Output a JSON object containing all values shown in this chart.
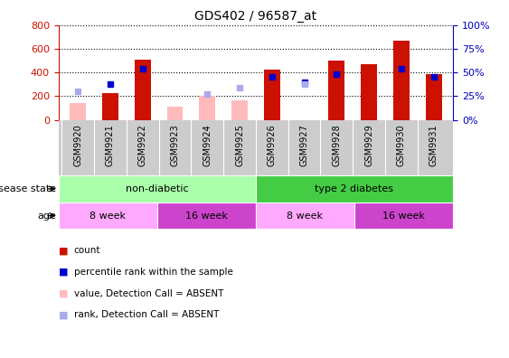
{
  "title": "GDS402 / 96587_at",
  "samples": [
    "GSM9920",
    "GSM9921",
    "GSM9922",
    "GSM9923",
    "GSM9924",
    "GSM9925",
    "GSM9926",
    "GSM9927",
    "GSM9928",
    "GSM9929",
    "GSM9930",
    "GSM9931"
  ],
  "count_values": [
    null,
    225,
    510,
    null,
    null,
    null,
    425,
    null,
    498,
    470,
    665,
    385
  ],
  "count_absent": [
    145,
    null,
    null,
    110,
    200,
    165,
    null,
    null,
    null,
    null,
    null,
    null
  ],
  "percentile_rank": [
    null,
    305,
    435,
    null,
    null,
    null,
    360,
    320,
    385,
    null,
    435,
    360
  ],
  "percentile_absent": [
    245,
    null,
    null,
    null,
    215,
    270,
    null,
    305,
    null,
    null,
    null,
    null
  ],
  "ylim_left": [
    0,
    800
  ],
  "ylim_right": [
    0,
    100
  ],
  "yticks_left": [
    0,
    200,
    400,
    600,
    800
  ],
  "yticks_right": [
    0,
    25,
    50,
    75,
    100
  ],
  "bar_color_count": "#cc1100",
  "bar_color_absent": "#ffbbbb",
  "dot_color_rank": "#0000cc",
  "dot_color_rank_absent": "#aaaaee",
  "disease_state_groups": [
    {
      "label": "non-diabetic",
      "start": 0,
      "end": 6,
      "color": "#aaffaa"
    },
    {
      "label": "type 2 diabetes",
      "start": 6,
      "end": 12,
      "color": "#44cc44"
    }
  ],
  "age_groups": [
    {
      "label": "8 week",
      "start": 0,
      "end": 3,
      "color": "#ffaaff"
    },
    {
      "label": "16 week",
      "start": 3,
      "end": 6,
      "color": "#cc44cc"
    },
    {
      "label": "8 week",
      "start": 6,
      "end": 9,
      "color": "#ffaaff"
    },
    {
      "label": "16 week",
      "start": 9,
      "end": 12,
      "color": "#cc44cc"
    }
  ],
  "legend_items": [
    {
      "label": "count",
      "color": "#cc1100"
    },
    {
      "label": "percentile rank within the sample",
      "color": "#0000cc"
    },
    {
      "label": "value, Detection Call = ABSENT",
      "color": "#ffbbbb"
    },
    {
      "label": "rank, Detection Call = ABSENT",
      "color": "#aaaaee"
    }
  ],
  "left_axis_color": "#cc1100",
  "right_axis_color": "#0000bb",
  "grid_color": "#000000",
  "tick_label_bg": "#cccccc",
  "bar_width": 0.5
}
